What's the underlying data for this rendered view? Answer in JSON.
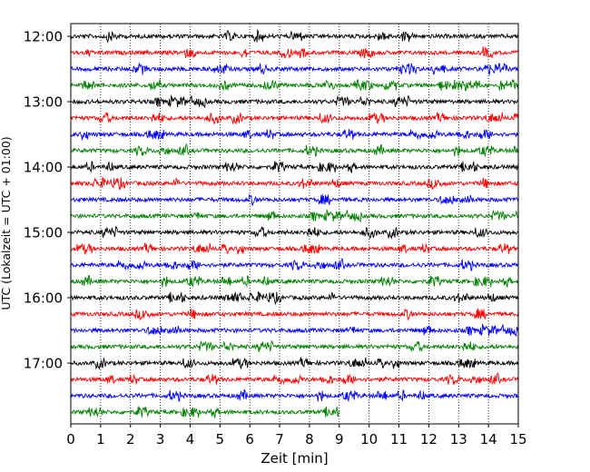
{
  "chart_data": {
    "type": "line",
    "title": "",
    "xlabel": "Zeit  [min]",
    "ylabel": "UTC (Lokalzeit = UTC + 01:00)",
    "xlim": [
      0,
      15
    ],
    "x_ticks": [
      "0",
      "1",
      "2",
      "3",
      "4",
      "5",
      "6",
      "7",
      "8",
      "9",
      "10",
      "11",
      "12",
      "13",
      "14",
      "15"
    ],
    "y_ticks": [
      "12:00",
      "13:00",
      "14:00",
      "15:00",
      "16:00",
      "17:00"
    ],
    "grid": "vertical dotted",
    "trace_interval_min": 15,
    "series": [
      {
        "start": "12:00",
        "color": "#000000",
        "end_min": 15
      },
      {
        "start": "12:15",
        "color": "#ff0000",
        "end_min": 15
      },
      {
        "start": "12:30",
        "color": "#0000ff",
        "end_min": 15
      },
      {
        "start": "12:45",
        "color": "#008000",
        "end_min": 15
      },
      {
        "start": "13:00",
        "color": "#000000",
        "end_min": 15
      },
      {
        "start": "13:15",
        "color": "#ff0000",
        "end_min": 15
      },
      {
        "start": "13:30",
        "color": "#0000ff",
        "end_min": 15
      },
      {
        "start": "13:45",
        "color": "#008000",
        "end_min": 15
      },
      {
        "start": "14:00",
        "color": "#000000",
        "end_min": 15
      },
      {
        "start": "14:15",
        "color": "#ff0000",
        "end_min": 15
      },
      {
        "start": "14:30",
        "color": "#0000ff",
        "end_min": 15
      },
      {
        "start": "14:45",
        "color": "#008000",
        "end_min": 15
      },
      {
        "start": "15:00",
        "color": "#000000",
        "end_min": 15
      },
      {
        "start": "15:15",
        "color": "#ff0000",
        "end_min": 15
      },
      {
        "start": "15:30",
        "color": "#0000ff",
        "end_min": 15
      },
      {
        "start": "15:45",
        "color": "#008000",
        "end_min": 15
      },
      {
        "start": "16:00",
        "color": "#000000",
        "end_min": 15
      },
      {
        "start": "16:15",
        "color": "#ff0000",
        "end_min": 15
      },
      {
        "start": "16:30",
        "color": "#0000ff",
        "end_min": 15
      },
      {
        "start": "16:45",
        "color": "#008000",
        "end_min": 15
      },
      {
        "start": "17:00",
        "color": "#000000",
        "end_min": 15
      },
      {
        "start": "17:15",
        "color": "#ff0000",
        "end_min": 15
      },
      {
        "start": "17:30",
        "color": "#0000ff",
        "end_min": 15
      },
      {
        "start": "17:45",
        "color": "#008000",
        "end_min": 9
      }
    ]
  }
}
